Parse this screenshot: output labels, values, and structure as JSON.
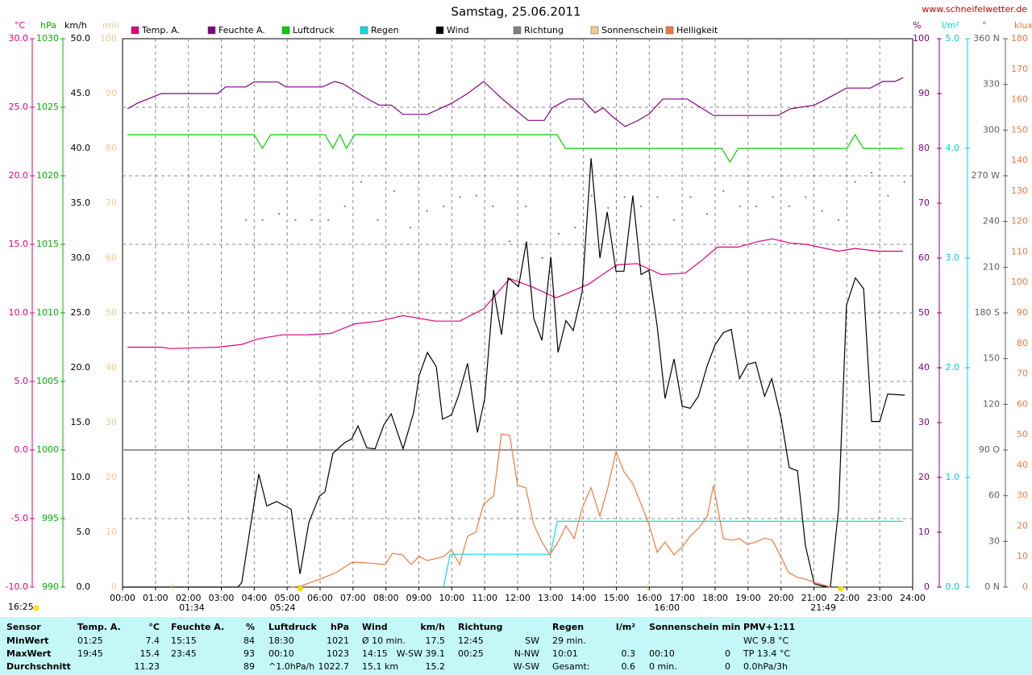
{
  "chart_data": {
    "type": "line",
    "title": "Samstag, 25.06.2011",
    "source": "www.schneifelwetter.de",
    "timestamp": "16:25",
    "xlim": [
      0,
      24
    ],
    "xticks": [
      {
        "value": 0,
        "label": "00:00"
      },
      {
        "value": 1,
        "label": "01:00"
      },
      {
        "value": 2,
        "label": "02:00"
      },
      {
        "value": 3,
        "label": "03:00"
      },
      {
        "value": 4,
        "label": "04:00"
      },
      {
        "value": 5,
        "label": "05:00"
      },
      {
        "value": 6,
        "label": "06:00"
      },
      {
        "value": 7,
        "label": "07:00"
      },
      {
        "value": 8,
        "label": "08:00"
      },
      {
        "value": 9,
        "label": "09:00"
      },
      {
        "value": 10,
        "label": "10:00"
      },
      {
        "value": 11,
        "label": "11:00"
      },
      {
        "value": 12,
        "label": "12:00"
      },
      {
        "value": 13,
        "label": "13:00"
      },
      {
        "value": 14,
        "label": "14:00"
      },
      {
        "value": 15,
        "label": "15:00"
      },
      {
        "value": 16,
        "label": "16:00"
      },
      {
        "value": 17,
        "label": "17:00"
      },
      {
        "value": 18,
        "label": "18:00"
      },
      {
        "value": 19,
        "label": "19:00"
      },
      {
        "value": 20,
        "label": "20:00"
      },
      {
        "value": 21,
        "label": "21:00"
      },
      {
        "value": 22,
        "label": "22:00"
      },
      {
        "value": 23,
        "label": "23:00"
      },
      {
        "value": 24,
        "label": "24:00"
      }
    ],
    "grid": true,
    "axes": [
      {
        "label": "°C",
        "color": "#e0007a",
        "lim": [
          -10,
          30
        ],
        "ticks": [
          {
            "value": -10,
            "label": "-10.0"
          },
          {
            "value": -5,
            "label": "-5.0"
          },
          {
            "value": 0,
            "label": "0.0"
          },
          {
            "value": 5,
            "label": "5.0"
          },
          {
            "value": 10,
            "label": "10.0"
          },
          {
            "value": 15,
            "label": "15.0"
          },
          {
            "value": 20,
            "label": "20.0"
          },
          {
            "value": 25,
            "label": "25.0"
          },
          {
            "value": 30,
            "label": "30.0"
          }
        ]
      },
      {
        "label": "hPa",
        "color": "#00b000",
        "lim": [
          990,
          1030
        ],
        "ticks": [
          990,
          995,
          1000,
          1005,
          1010,
          1015,
          1020,
          1025,
          1030
        ]
      },
      {
        "label": "km/h",
        "color": "#000000",
        "lim": [
          0,
          50
        ],
        "ticks": [
          {
            "value": 0,
            "label": "0.0"
          },
          {
            "value": 5,
            "label": "5.0"
          },
          {
            "value": 10,
            "label": "10.0"
          },
          {
            "value": 15,
            "label": "15.0"
          },
          {
            "value": 20,
            "label": "20.0"
          },
          {
            "value": 25,
            "label": "25.0"
          },
          {
            "value": 30,
            "label": "30.0"
          },
          {
            "value": 35,
            "label": "35.0"
          },
          {
            "value": 40,
            "label": "40.0"
          },
          {
            "value": 45,
            "label": "45.0"
          },
          {
            "value": 50,
            "label": "50.0"
          }
        ]
      },
      {
        "label": "min",
        "color": "#f0c890",
        "lim": [
          0,
          100
        ],
        "ticks": [
          0,
          10,
          20,
          30,
          40,
          50,
          60,
          70,
          80,
          90,
          100
        ]
      },
      {
        "label": "%",
        "color": "#800080",
        "lim": [
          0,
          100
        ],
        "ticks": [
          0,
          10,
          20,
          30,
          40,
          50,
          60,
          70,
          80,
          90,
          100
        ]
      },
      {
        "label": "l/m²",
        "color": "#00d0d0",
        "lim": [
          0,
          5
        ],
        "ticks": [
          {
            "value": 0,
            "label": "0.0"
          },
          {
            "value": 1,
            "label": "1.0"
          },
          {
            "value": 2,
            "label": "2.0"
          },
          {
            "value": 3,
            "label": "3.0"
          },
          {
            "value": 4,
            "label": "4.0"
          },
          {
            "value": 5,
            "label": "5.0"
          }
        ]
      },
      {
        "label": "°",
        "color": "#606060",
        "lim": [
          0,
          360
        ],
        "ticks": [
          {
            "value": 0,
            "label": "0 N"
          },
          30,
          60,
          {
            "value": 90,
            "label": "90 O"
          },
          120,
          150,
          {
            "value": 180,
            "label": "180 S"
          },
          210,
          240,
          {
            "value": 270,
            "label": "270 W"
          },
          300,
          330,
          {
            "value": 360,
            "label": "360 N"
          }
        ]
      },
      {
        "label": "klux",
        "color": "#f07840",
        "lim": [
          0,
          180
        ],
        "ticks": [
          0,
          10,
          20,
          30,
          40,
          50,
          60,
          70,
          80,
          90,
          100,
          110,
          120,
          130,
          140,
          150,
          160,
          170,
          180
        ]
      }
    ],
    "series": [
      {
        "name": "Temp. A.",
        "color": "#e0007a",
        "axis": 0,
        "x": [
          0.15,
          1.18,
          1.42,
          2.89,
          3.62,
          4.11,
          4.85,
          5.58,
          6.32,
          7.05,
          7.79,
          8.52,
          9.5,
          10.24,
          10.97,
          11.76,
          12.44,
          13.17,
          14.16,
          15.01,
          15.63,
          16.36,
          17.09,
          17.58,
          18.07,
          18.69,
          19.3,
          19.74,
          20.28,
          20.77,
          21.75,
          22.24,
          22.97,
          23.71
        ],
        "values": [
          7.5,
          7.5,
          7.4,
          7.5,
          7.7,
          8.1,
          8.4,
          8.4,
          8.5,
          9.2,
          9.4,
          9.8,
          9.4,
          9.4,
          10.3,
          12.5,
          11.9,
          11.1,
          12.1,
          13.5,
          13.6,
          12.8,
          12.9,
          13.8,
          14.8,
          14.8,
          15.2,
          15.4,
          15.1,
          15.0,
          14.5,
          14.7,
          14.5,
          14.5
        ]
      },
      {
        "name": "Feuchte A.",
        "color": "#800080",
        "axis": 4,
        "x": [
          0.15,
          0.44,
          1.18,
          2.89,
          3.13,
          3.75,
          3.99,
          4.72,
          4.97,
          6.07,
          6.44,
          6.69,
          7.42,
          7.79,
          8.16,
          8.52,
          9.26,
          9.99,
          10.48,
          10.97,
          11.46,
          11.95,
          12.32,
          12.81,
          13.05,
          13.54,
          13.96,
          14.35,
          14.6,
          14.84,
          15.26,
          15.63,
          16.0,
          16.41,
          17.15,
          17.95,
          19.91,
          20.28,
          21.01,
          21.38,
          21.99,
          22.72,
          23.09,
          23.46,
          23.71
        ],
        "values": [
          87.2,
          88.2,
          90.0,
          90.0,
          91.2,
          91.2,
          92.1,
          92.1,
          91.2,
          91.2,
          92.2,
          91.8,
          89.1,
          87.9,
          87.9,
          86.2,
          86.2,
          88.2,
          90.0,
          92.2,
          89.4,
          86.9,
          85.1,
          85.1,
          87.4,
          89.0,
          89.0,
          86.5,
          87.4,
          86.0,
          84.0,
          85.0,
          86.3,
          89.0,
          89.0,
          86.0,
          86.0,
          87.2,
          87.9,
          89.0,
          91.0,
          91.0,
          92.2,
          92.2,
          92.9
        ]
      },
      {
        "name": "Luftdruck",
        "color": "#00d000",
        "axis": 1,
        "x": [
          0.15,
          4.0,
          4.25,
          4.5,
          6.15,
          6.39,
          6.6,
          6.8,
          7.05,
          13.2,
          13.45,
          18.2,
          18.45,
          18.7,
          22.0,
          22.25,
          22.5,
          23.71
        ],
        "values": [
          1023,
          1023,
          1022,
          1023,
          1023,
          1022,
          1023,
          1022,
          1023,
          1023,
          1022,
          1022,
          1021,
          1022,
          1022,
          1023,
          1022,
          1022
        ]
      },
      {
        "name": "Regen",
        "color": "#00e0e0",
        "axis": 5,
        "x": [
          9.75,
          9.95,
          13.0,
          13.2,
          23.71
        ],
        "values": [
          0,
          0.3,
          0.3,
          0.6,
          0.6
        ]
      },
      {
        "name": "Wind",
        "color": "#000000",
        "axis": 2,
        "x": [
          0,
          3.5,
          3.62,
          3.94,
          4.14,
          4.38,
          4.68,
          5.12,
          5.39,
          5.66,
          5.98,
          6.15,
          6.39,
          6.76,
          6.96,
          7.15,
          7.42,
          7.67,
          7.94,
          8.16,
          8.52,
          8.84,
          9.01,
          9.26,
          9.53,
          9.72,
          9.99,
          10.21,
          10.48,
          10.78,
          11.0,
          11.27,
          11.51,
          11.71,
          12.03,
          12.27,
          12.49,
          12.74,
          13.01,
          13.23,
          13.47,
          13.69,
          13.96,
          14.23,
          14.5,
          14.72,
          14.99,
          15.23,
          15.5,
          15.75,
          15.99,
          16.24,
          16.48,
          16.75,
          17.0,
          17.24,
          17.49,
          17.76,
          18.0,
          18.25,
          18.49,
          18.74,
          18.98,
          19.23,
          19.5,
          19.72,
          20.01,
          20.25,
          20.5,
          20.74,
          21.01,
          21.26,
          21.5,
          21.75,
          21.99,
          22.26,
          22.51,
          22.75,
          23.0,
          23.24,
          23.76
        ],
        "values": [
          0,
          0,
          0.4,
          6.6,
          10.3,
          7.4,
          7.8,
          7.1,
          1.2,
          5.9,
          8.3,
          8.7,
          12.2,
          13.2,
          13.5,
          14.7,
          12.7,
          12.6,
          14.8,
          15.8,
          12.6,
          15.9,
          19.3,
          21.4,
          20.1,
          15.3,
          15.7,
          17.5,
          20.4,
          14.1,
          17.2,
          27.1,
          23.0,
          28.2,
          27.4,
          31.5,
          24.5,
          22.5,
          30.1,
          21.4,
          24.3,
          23.4,
          26.9,
          39.1,
          30.0,
          34.2,
          28.8,
          28.8,
          35.7,
          28.5,
          28.9,
          23.8,
          17.2,
          20.8,
          16.5,
          16.3,
          17.4,
          20.2,
          22.1,
          23.2,
          23.5,
          19.0,
          20.3,
          20.5,
          17.4,
          19.0,
          15.3,
          10.9,
          10.6,
          3.8,
          0.3,
          0.1,
          0,
          7.1,
          25.7,
          28.2,
          27.2,
          15.1,
          15.1,
          17.6,
          17.5
        ]
      },
      {
        "name": "Richtung",
        "color": "#808080",
        "axis": 6,
        "type": "scatter",
        "x": [
          3.75,
          4.25,
          4.75,
          5.25,
          5.75,
          6.25,
          6.75,
          7.25,
          7.75,
          8.25,
          8.75,
          9.25,
          9.75,
          10.25,
          10.75,
          11.25,
          11.75,
          12.25,
          12.75,
          13.25,
          13.75,
          14.25,
          14.75,
          15.25,
          15.75,
          16.25,
          16.75,
          17.25,
          17.75,
          18.25,
          18.75,
          19.25,
          19.75,
          20.25,
          20.75,
          21.25,
          21.75,
          22.25,
          22.75,
          23.25,
          23.75
        ],
        "values": [
          241,
          241,
          245,
          241,
          241,
          241,
          250,
          266,
          241,
          260,
          236,
          247,
          250,
          256,
          257,
          250,
          227,
          250,
          216,
          232,
          236,
          257,
          249,
          256,
          250,
          256,
          241,
          256,
          245,
          260,
          250,
          250,
          256,
          250,
          256,
          247,
          241,
          266,
          272,
          257,
          266
        ]
      },
      {
        "name": "Sonnenschein",
        "color": "#f8c890",
        "axis": 3
      },
      {
        "name": "Helligkeit",
        "color": "#f07840",
        "axis": 7,
        "x": [
          5.14,
          5.39,
          6.0,
          6.49,
          6.98,
          7.49,
          7.98,
          8.2,
          8.5,
          8.77,
          9.01,
          9.26,
          9.75,
          9.99,
          10.24,
          10.48,
          10.73,
          10.97,
          11.27,
          11.51,
          11.76,
          12.0,
          12.25,
          12.49,
          12.74,
          12.98,
          13.23,
          13.47,
          13.72,
          13.96,
          14.23,
          14.5,
          14.74,
          14.99,
          15.23,
          15.5,
          15.75,
          15.99,
          16.24,
          16.48,
          16.75,
          17.0,
          17.24,
          17.49,
          17.76,
          17.95,
          18.25,
          18.49,
          18.74,
          18.98,
          19.23,
          19.5,
          19.74,
          19.99,
          20.23,
          20.5,
          20.74,
          21.01,
          21.26,
          21.5
        ],
        "values": [
          0,
          0.3,
          2.6,
          4.8,
          8.2,
          7.9,
          7.4,
          11.1,
          10.6,
          7.4,
          10.1,
          8.7,
          10,
          12.2,
          7.4,
          16.7,
          18,
          27.3,
          29.9,
          50.3,
          49.8,
          33.4,
          32.6,
          20.6,
          14.8,
          10.6,
          14.8,
          20.1,
          15.9,
          25.9,
          32.6,
          23.3,
          32.6,
          44.5,
          37.9,
          33.9,
          27.3,
          20.6,
          11.4,
          14.8,
          10.6,
          13.2,
          16.7,
          19.3,
          23.3,
          33.4,
          15.9,
          15.4,
          15.9,
          14.0,
          14.8,
          16.1,
          15.4,
          10.1,
          4.8,
          3.2,
          2.6,
          1.6,
          0.8,
          0
        ]
      }
    ],
    "events": [
      {
        "x": 1.57,
        "label": "01:34",
        "icon": "moon"
      },
      {
        "x": 5.4,
        "label": "05:24",
        "icon": "sun"
      },
      {
        "x": 16.0,
        "label": "16:00",
        "icon": "moon"
      },
      {
        "x": 21.82,
        "label": "21:49",
        "icon": "sun"
      }
    ]
  },
  "table": {
    "rows": [
      [
        "Sensor",
        "Temp. A.",
        "°C",
        "Feuchte A.",
        "%",
        "Luftdruck",
        "hPa",
        "Wind",
        "km/h",
        "Richtung",
        null,
        "Regen",
        "l/m²",
        "Sonnenschein min",
        null,
        "PMV+1:11"
      ],
      [
        "MinWert",
        "01:25",
        "7.4",
        "15:15",
        "84",
        "18:30",
        "1021",
        "Ø 10 min.",
        "17.5",
        "12:45",
        "SW",
        "29 min.",
        null,
        null,
        null,
        "WC 9.8 °C"
      ],
      [
        "MaxWert",
        "19:45",
        "15.4",
        "23:45",
        "93",
        "00:10",
        "1023",
        "14:15",
        "W-SW 39.1",
        "00:25",
        "N-NW",
        "10:01",
        "0.3",
        "00:10",
        "0",
        "TP 13.4 °C"
      ],
      [
        "Durchschnitt",
        null,
        "11.23",
        null,
        "89",
        "^1.0hPa/h",
        "1022.7",
        "15,1 km",
        "15.2",
        null,
        "W-SW",
        "Gesamt:",
        "0.6",
        "0 min.",
        "0",
        "0.0hPa/3h"
      ]
    ]
  }
}
